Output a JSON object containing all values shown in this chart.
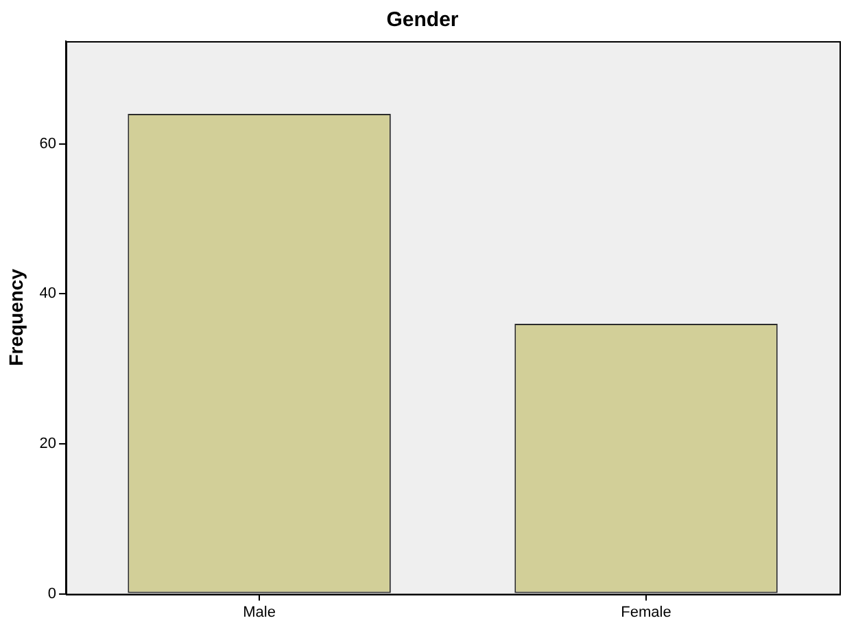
{
  "chart_data": {
    "type": "bar",
    "title": "Gender",
    "ylabel": "Frequency",
    "categories": [
      "Male",
      "Female"
    ],
    "values": [
      64,
      36
    ],
    "color": "#d2cf98",
    "ylim": [
      0,
      73.7
    ],
    "yticks": [
      0,
      20,
      40,
      60
    ]
  }
}
